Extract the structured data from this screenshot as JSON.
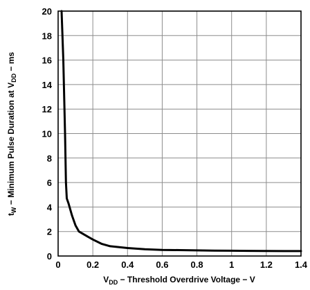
{
  "chart_data": {
    "type": "line",
    "title": "",
    "xlabel": {
      "parts": [
        "V",
        "DD",
        " − Threshold Overdrive Voltage − V"
      ]
    },
    "ylabel": {
      "parts": [
        "t",
        "W",
        " − Minimum Pulse Duration at V",
        "DD",
        " − ms"
      ]
    },
    "xlim": [
      0,
      1.4
    ],
    "ylim": [
      0,
      20
    ],
    "x_ticks": [
      0,
      0.2,
      0.4,
      0.6,
      0.8,
      1,
      1.2,
      1.4
    ],
    "x_tick_labels": [
      "0",
      "0.2",
      "0.4",
      "0.6",
      "0.8",
      "1",
      "1.2",
      "1.4"
    ],
    "y_ticks": [
      0,
      2,
      4,
      6,
      8,
      10,
      12,
      14,
      16,
      18,
      20
    ],
    "y_tick_labels": [
      "0",
      "2",
      "4",
      "6",
      "8",
      "10",
      "12",
      "14",
      "16",
      "18",
      "20"
    ],
    "grid": true,
    "series": [
      {
        "color": "#000000",
        "x": [
          0.02,
          0.03,
          0.04,
          0.045,
          0.05,
          0.06,
          0.08,
          0.1,
          0.12,
          0.15,
          0.2,
          0.25,
          0.3,
          0.4,
          0.5,
          0.6,
          0.7,
          0.8,
          0.9,
          1.0,
          1.1,
          1.2,
          1.3,
          1.4
        ],
        "y": [
          20,
          16,
          10,
          6,
          4.7,
          4.3,
          3.3,
          2.5,
          2.0,
          1.75,
          1.35,
          1.0,
          0.8,
          0.65,
          0.55,
          0.5,
          0.48,
          0.46,
          0.44,
          0.43,
          0.42,
          0.41,
          0.4,
          0.4
        ]
      }
    ]
  }
}
